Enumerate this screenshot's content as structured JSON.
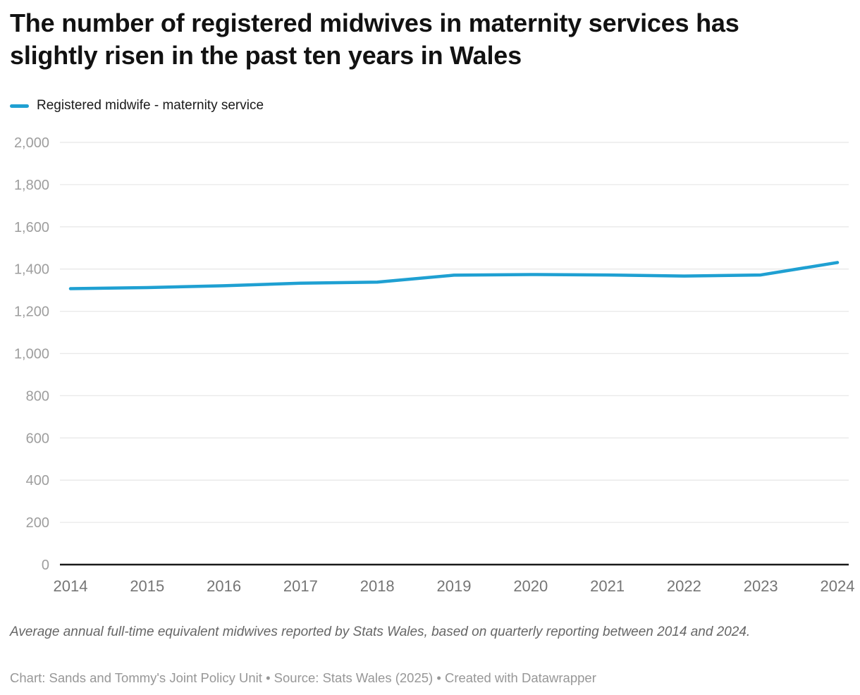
{
  "header": {
    "title": "The number of registered midwives in maternity services has slightly risen in the past ten years in Wales"
  },
  "legend": {
    "items": [
      {
        "label": "Registered midwife - maternity service",
        "color": "#1fa0d2"
      }
    ]
  },
  "chart_data": {
    "type": "line",
    "title": "The number of registered midwives in maternity services has slightly risen in the past ten years in Wales",
    "x": [
      2014,
      2015,
      2016,
      2017,
      2018,
      2019,
      2020,
      2021,
      2022,
      2023,
      2024
    ],
    "series": [
      {
        "name": "Registered midwife - maternity service",
        "color": "#1fa0d2",
        "values": [
          1307,
          1312,
          1321,
          1333,
          1338,
          1371,
          1374,
          1372,
          1367,
          1372,
          1431
        ]
      }
    ],
    "xlabel": "",
    "ylabel": "",
    "ylim": [
      0,
      2000
    ],
    "ytick_values": [
      0,
      200,
      400,
      600,
      800,
      1000,
      1200,
      1400,
      1600,
      1800,
      2000
    ],
    "ytick_labels": [
      "0",
      "200",
      "400",
      "600",
      "800",
      "1,000",
      "1,200",
      "1,400",
      "1,600",
      "1,800",
      "2,000"
    ],
    "grid": "horizontal",
    "gridline_color": "#e8e8e8",
    "axis_color": "#1a1a1a",
    "legend_position": "top-left"
  },
  "footer": {
    "note": "Average annual full-time equivalent midwives reported by Stats Wales, based on quarterly reporting between 2014 and 2024.",
    "credit": "Chart: Sands and Tommy's Joint Policy Unit • Source: Stats Wales (2025) • Created with Datawrapper"
  }
}
